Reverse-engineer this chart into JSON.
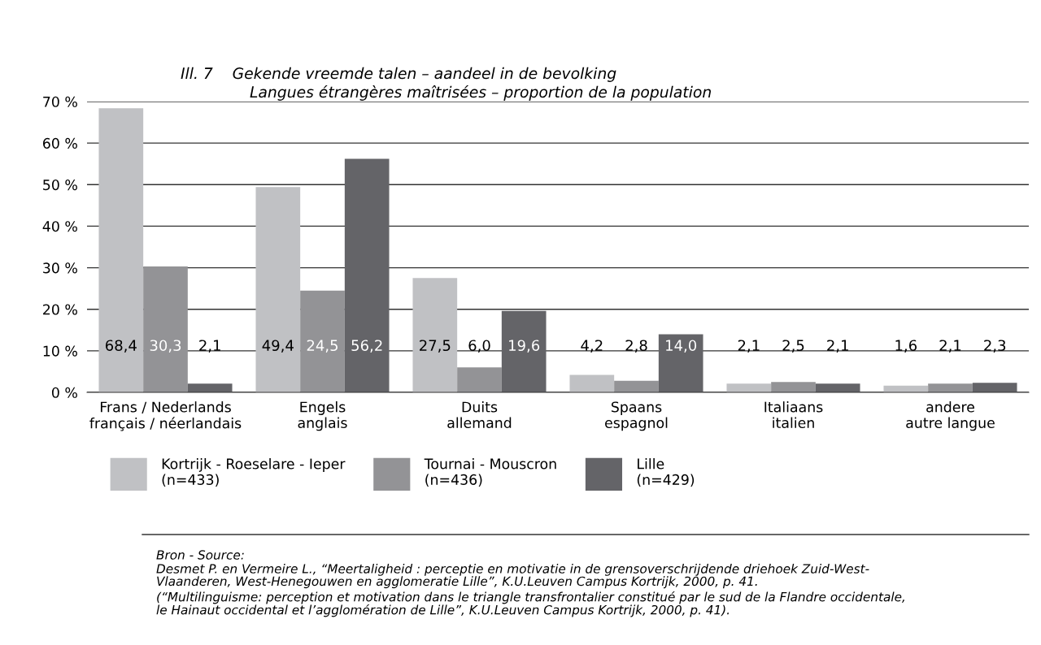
{
  "chart_data": {
    "type": "bar",
    "title": "Ill. 7    Gekende vreemde talen – aandeel in de bevolking",
    "subtitle": "Langues étrangères maîtrisées – proportion de la population",
    "categories": [
      "Frans / Nederlands\nfrançais / néerlandais",
      "Engels\nanglais",
      "Duits\nallemand",
      "Spaans\nespagnol",
      "Italiaans\nitalien",
      "andere\nautre langue"
    ],
    "series": [
      {
        "name": "Kortrijk - Roeselare - Ieper\n(n=433)",
        "color": "#c0c1c4",
        "values": [
          68.4,
          49.4,
          27.5,
          4.2,
          2.1,
          1.6
        ],
        "value_labels": [
          "68,4",
          "49,4",
          "27,5",
          "4,2",
          "2,1",
          "1,6"
        ]
      },
      {
        "name": "Tournai - Mouscron\n(n=436)",
        "color": "#939396",
        "values": [
          30.3,
          24.5,
          6.0,
          2.8,
          2.5,
          2.1
        ],
        "value_labels": [
          "30,3",
          "24,5",
          "6,0",
          "2,8",
          "2,5",
          "2,1"
        ]
      },
      {
        "name": "Lille\n(n=429)",
        "color": "#646468",
        "values": [
          2.1,
          56.2,
          19.6,
          14.0,
          2.1,
          2.3
        ],
        "value_labels": [
          "2,1",
          "56,2",
          "19,6",
          "14,0",
          "2,1",
          "2,3"
        ]
      }
    ],
    "ylim": [
      0,
      70
    ],
    "yticks": [
      {
        "value": 0,
        "label": "0 %"
      },
      {
        "value": 10,
        "label": "10 %"
      },
      {
        "value": 20,
        "label": "20 %"
      },
      {
        "value": 30,
        "label": "30 %"
      },
      {
        "value": 40,
        "label": "40 %"
      },
      {
        "value": 50,
        "label": "50 %"
      },
      {
        "value": 60,
        "label": "60 %"
      },
      {
        "value": 70,
        "label": "70 %"
      }
    ],
    "grid": "y",
    "legend": "bottom",
    "annotations": [
      "Bron - Source:",
      "Desmet P. en Vermeire L., “Meertaligheid : perceptie en motivatie in de grensoverschrijdende driehoek Zuid-West-\nVlaanderen, West-Henegouwen en agglomeratie Lille”, K.U.Leuven Campus Kortrijk, 2000, p. 41.",
      "(“Multilinguisme: perception et motivation dans le triangle transfrontalier constitué par le sud de la Flandre occidentale,\nle Hainaut occidental et l’agglomération de Lille”, K.U.Leuven Campus Kortrijk, 2000, p. 41)."
    ]
  }
}
